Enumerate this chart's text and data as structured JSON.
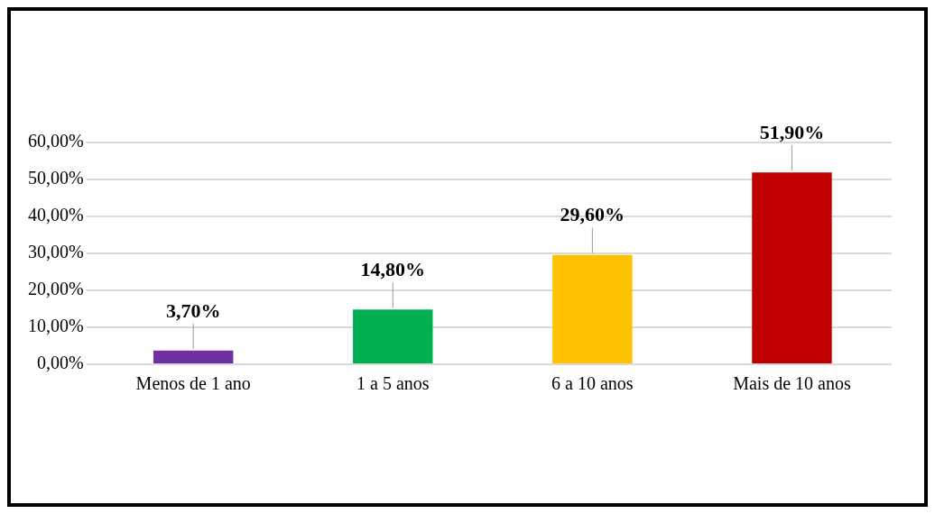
{
  "chart_data": {
    "type": "bar",
    "categories": [
      "Menos de 1 ano",
      "1 a 5 anos",
      "6 a 10 anos",
      "Mais de 10 anos"
    ],
    "values": [
      3.7,
      14.8,
      29.6,
      51.9
    ],
    "colors": [
      "#7030a0",
      "#00b050",
      "#ffc000",
      "#c00000"
    ],
    "value_labels": [
      "3,70%",
      "14,80%",
      "29,60%",
      "51,90%"
    ],
    "ylim": [
      0,
      60
    ],
    "yticks": [
      {
        "value": 0,
        "label": "0,00%"
      },
      {
        "value": 10,
        "label": "10,00%"
      },
      {
        "value": 20,
        "label": "20,00%"
      },
      {
        "value": 30,
        "label": "30,00%"
      },
      {
        "value": 40,
        "label": "40,00%"
      },
      {
        "value": 50,
        "label": "50,00%"
      },
      {
        "value": 60,
        "label": "60,00%"
      }
    ],
    "grid": "y",
    "legend": false
  }
}
